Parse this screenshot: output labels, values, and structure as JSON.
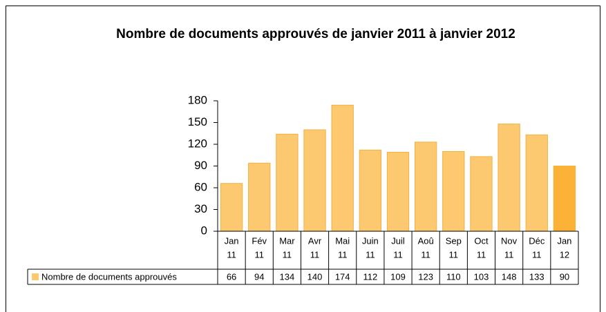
{
  "chart_data": {
    "type": "bar",
    "title": "Nombre de documents approuvés de janvier 2011 à janvier 2012",
    "categories": [
      [
        "Jan",
        "11"
      ],
      [
        "Fév",
        "11"
      ],
      [
        "Mar",
        "11"
      ],
      [
        "Avr",
        "11"
      ],
      [
        "Mai",
        "11"
      ],
      [
        "Juin",
        "11"
      ],
      [
        "Juil",
        "11"
      ],
      [
        "Aoû",
        "11"
      ],
      [
        "Sep",
        "11"
      ],
      [
        "Oct",
        "11"
      ],
      [
        "Nov",
        "11"
      ],
      [
        "Déc",
        "11"
      ],
      [
        "Jan",
        "12"
      ]
    ],
    "series": [
      {
        "name": "Nombre de documents approuvés",
        "color": "#fcc870",
        "colors": [
          "#fcc870",
          "#fcc870",
          "#fcc870",
          "#fcc870",
          "#fcc870",
          "#fcc870",
          "#fcc870",
          "#fcc870",
          "#fcc870",
          "#fcc870",
          "#fcc870",
          "#fcc870",
          "#fbb236"
        ],
        "values": [
          66,
          94,
          134,
          140,
          174,
          112,
          109,
          123,
          110,
          103,
          148,
          133,
          90
        ]
      }
    ],
    "ylim": [
      0,
      180
    ],
    "yticks": [
      0,
      30,
      60,
      90,
      120,
      150,
      180
    ],
    "grid": false,
    "data_table": true
  }
}
